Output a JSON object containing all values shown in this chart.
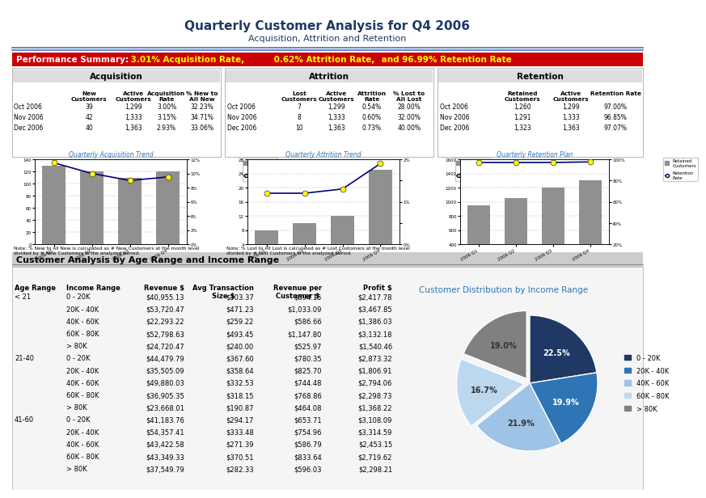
{
  "title": "Quarterly Customer Analysis for Q4 2006",
  "subtitle": "Acquisition, Attrition and Retention",
  "acq_table": {
    "rows": [
      [
        "Oct 2006",
        "39",
        "1,299",
        "3.00%",
        "32.23%"
      ],
      [
        "Nov 2006",
        "42",
        "1,333",
        "3.15%",
        "34.71%"
      ],
      [
        "Dec 2006",
        "40",
        "1,363",
        "2.93%",
        "33.06%"
      ]
    ]
  },
  "att_table": {
    "rows": [
      [
        "Oct 2006",
        "7",
        "1,299",
        "0.54%",
        "28.00%"
      ],
      [
        "Nov 2006",
        "8",
        "1,333",
        "0.60%",
        "32.00%"
      ],
      [
        "Dec 2006",
        "10",
        "1,363",
        "0.73%",
        "40.00%"
      ]
    ]
  },
  "ret_table": {
    "rows": [
      [
        "Oct 2006",
        "1,260",
        "1,299",
        "97.00%"
      ],
      [
        "Nov 2006",
        "1,291",
        "1,333",
        "96.85%"
      ],
      [
        "Dec 2006",
        "1,323",
        "1,363",
        "97.07%"
      ]
    ]
  },
  "acq_chart": {
    "quarters": [
      "2006 Q1",
      "2006 Q2",
      "2006 Q3",
      "2006 Q4"
    ],
    "new_customers": [
      130,
      120,
      110,
      120
    ],
    "acq_rate": [
      11.5,
      10.0,
      9.0,
      9.5
    ],
    "ylim": [
      0,
      140
    ],
    "y2lim": [
      0,
      12
    ],
    "y2ticks": [
      "0%",
      "2%",
      "4%",
      "6%",
      "8%",
      "10%",
      "12%"
    ]
  },
  "att_chart": {
    "quarters": [
      "2006 Q1",
      "2006 Q2",
      "2006 Q3",
      "2006 Q4"
    ],
    "lost_customers": [
      8,
      10,
      12,
      25
    ],
    "att_rate": [
      1.2,
      1.2,
      1.3,
      1.9
    ],
    "ylim": [
      4,
      28
    ],
    "y2lim": [
      0,
      2
    ],
    "y2ticks": [
      "0%",
      "1%",
      "2%"
    ]
  },
  "ret_chart": {
    "quarters": [
      "2006 Q1",
      "2006 Q2",
      "2006 Q3",
      "2006 Q4"
    ],
    "retained_customers": [
      950,
      1050,
      1200,
      1300
    ],
    "ret_rate": [
      97.0,
      97.0,
      97.0,
      97.5
    ],
    "ylim": [
      400,
      1600
    ],
    "y2lim": [
      20,
      100
    ],
    "y2ticks": [
      "20%",
      "40%",
      "60%",
      "80%",
      "100%"
    ]
  },
  "age_income_rows": [
    [
      "< 21",
      "0 - 20K",
      "$40,955.13",
      "$303.37",
      "$694.15",
      "$2,417.78"
    ],
    [
      "",
      "20K - 40K",
      "$53,720.47",
      "$471.23",
      "$1,033.09",
      "$3,467.85"
    ],
    [
      "",
      "40K - 60K",
      "$22,293.22",
      "$259.22",
      "$586.66",
      "$1,386.03"
    ],
    [
      "",
      "60K - 80K",
      "$52,798.63",
      "$493.45",
      "$1,147.80",
      "$3,132.18"
    ],
    [
      "",
      "> 80K",
      "$24,720.47",
      "$240.00",
      "$525.97",
      "$1,540.46"
    ],
    [
      "21-40",
      "0 - 20K",
      "$44,479.79",
      "$367.60",
      "$780.35",
      "$2,873.32"
    ],
    [
      "",
      "20K - 40K",
      "$35,505.09",
      "$358.64",
      "$825.70",
      "$1,806.91"
    ],
    [
      "",
      "40K - 60K",
      "$49,880.03",
      "$332.53",
      "$744.48",
      "$2,794.06"
    ],
    [
      "",
      "60K - 80K",
      "$36,905.35",
      "$318.15",
      "$768.86",
      "$2,298.73"
    ],
    [
      "",
      "> 80K",
      "$23,668.01",
      "$190.87",
      "$464.08",
      "$1,368.22"
    ],
    [
      "41-60",
      "0 - 20K",
      "$41,183.76",
      "$294.17",
      "$653.71",
      "$3,108.09"
    ],
    [
      "",
      "20K - 40K",
      "$54,357.41",
      "$333.48",
      "$754.96",
      "$3,314.59"
    ],
    [
      "",
      "40K - 60K",
      "$43,422.58",
      "$271.39",
      "$586.79",
      "$2,453.15"
    ],
    [
      "",
      "60K - 80K",
      "$43,349.33",
      "$370.51",
      "$833.64",
      "$2,719.62"
    ],
    [
      "",
      "> 80K",
      "$37,549.79",
      "$282.33",
      "$596.03",
      "$2,298.21"
    ]
  ],
  "pie_title": "Customer Distribution by Income Range",
  "pie_slices": [
    22.5,
    19.9,
    21.9,
    16.7,
    19.0
  ],
  "pie_labels": [
    "0 - 20K",
    "20K - 40K",
    "40K - 60K",
    "60K - 80K",
    "> 80K"
  ],
  "pie_colors": [
    "#1F3864",
    "#2E75B6",
    "#9DC3E6",
    "#BDD7EE",
    "#808080"
  ],
  "pie_explode": [
    0.0,
    0.0,
    0.0,
    0.08,
    0.08
  ],
  "note_acq": "Note: % New to All New is calculated as # New Customers at the month level\ndivided by # New Customers in the analyzed period.",
  "note_att": "Note: % Lost to All Lost is calculated as # Lost Customers at the month level\ndivided by # Lost Customers in the analyzed period.",
  "header_blue": "#1F3864",
  "medium_blue": "#2E75B6"
}
